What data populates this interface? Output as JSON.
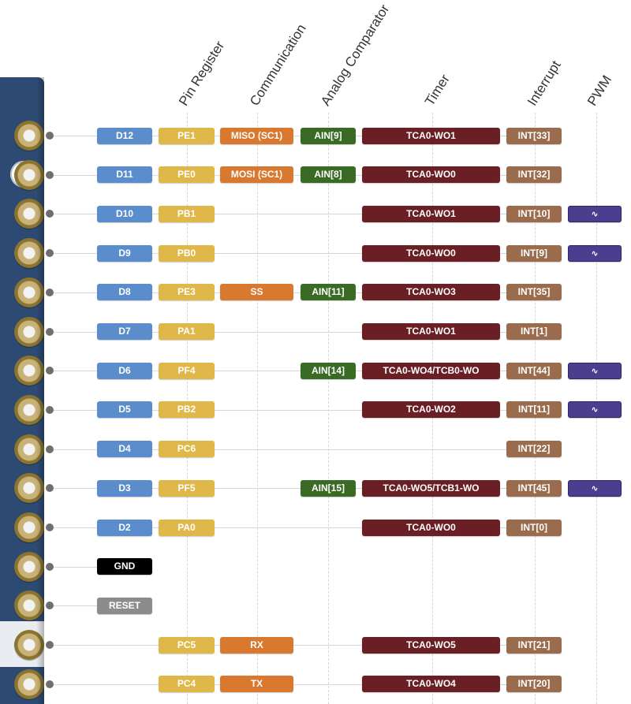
{
  "headers": {
    "pin_register": "Pin Register",
    "communication": "Communication",
    "analog_comparator": "Analog Comparator",
    "timer": "Timer",
    "interrupt": "Interrupt",
    "pwm": "PWM"
  },
  "pwm_symbol": "∿",
  "colors": {
    "board": "#2d4a73",
    "digital_pin": "#5b8dcc",
    "port_pin": "#e0b84a",
    "communication": "#d9782f",
    "analog_comparator": "#3a6b24",
    "timer": "#6a1f24",
    "interrupt": "#9a6c4d",
    "pwm": "#4b3e8e",
    "gnd": "#000000",
    "reset": "#8c8c8c"
  },
  "rows": [
    {
      "pin": "D12",
      "port": "PE1",
      "comm": "MISO (SC1)",
      "ac": "AIN[9]",
      "timer": "TCA0-WO1",
      "int": "INT[33]",
      "pwm": false
    },
    {
      "pin": "D11",
      "port": "PE0",
      "comm": "MOSI (SC1)",
      "ac": "AIN[8]",
      "timer": "TCA0-WO0",
      "int": "INT[32]",
      "pwm": false
    },
    {
      "pin": "D10",
      "port": "PB1",
      "timer": "TCA0-WO1",
      "int": "INT[10]",
      "pwm": true
    },
    {
      "pin": "D9",
      "port": "PB0",
      "timer": "TCA0-WO0",
      "int": "INT[9]",
      "pwm": true
    },
    {
      "pin": "D8",
      "port": "PE3",
      "comm": "SS",
      "ac": "AIN[11]",
      "timer": "TCA0-WO3",
      "int": "INT[35]",
      "pwm": false
    },
    {
      "pin": "D7",
      "port": "PA1",
      "timer": "TCA0-WO1",
      "int": "INT[1]",
      "pwm": false
    },
    {
      "pin": "D6",
      "port": "PF4",
      "ac": "AIN[14]",
      "timer": "TCA0-WO4/TCB0-WO",
      "int": "INT[44]",
      "pwm": true
    },
    {
      "pin": "D5",
      "port": "PB2",
      "timer": "TCA0-WO2",
      "int": "INT[11]",
      "pwm": true
    },
    {
      "pin": "D4",
      "port": "PC6",
      "int": "INT[22]",
      "pwm": false
    },
    {
      "pin": "D3",
      "port": "PF5",
      "ac": "AIN[15]",
      "timer": "TCA0-WO5/TCB1-WO",
      "int": "INT[45]",
      "pwm": true
    },
    {
      "pin": "D2",
      "port": "PA0",
      "timer": "TCA0-WO0",
      "int": "INT[0]",
      "pwm": false
    },
    {
      "pin": "GND",
      "kind": "gnd"
    },
    {
      "pin": "RESET",
      "kind": "reset"
    },
    {
      "port": "PC5",
      "comm": "RX",
      "timer": "TCA0-WO5",
      "int": "INT[21]",
      "pwm": false
    },
    {
      "port": "PC4",
      "comm": "TX",
      "timer": "TCA0-WO4",
      "int": "INT[20]",
      "pwm": false
    }
  ]
}
